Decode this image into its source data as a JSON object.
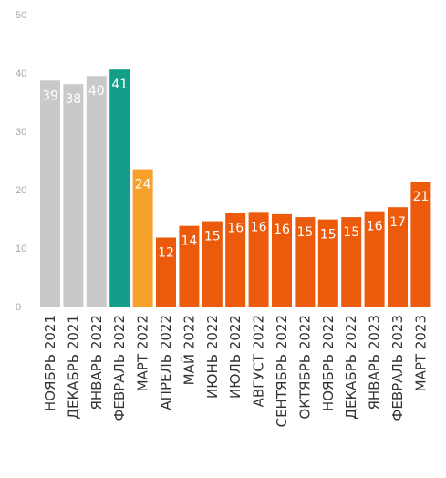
{
  "chart_data": {
    "type": "bar",
    "title": "",
    "xlabel": "",
    "ylabel": "",
    "ylim": [
      0,
      50
    ],
    "yticks": [
      0,
      10,
      20,
      30,
      40,
      50
    ],
    "grid": false,
    "categories": [
      "НОЯБРЬ 2021",
      "ДЕКАБРЬ 2021",
      "ЯНВАРЬ 2022",
      "ФЕВРАЛЬ 2022",
      "МАРТ 2022",
      "АПРЕЛЬ 2022",
      "МАЙ 2022",
      "ИЮНЬ 2022",
      "ИЮЛЬ 2022",
      "АВГУСТ 2022",
      "СЕНТЯБРЬ 2022",
      "ОКТЯБРЬ 2022",
      "НОЯБРЬ 2022",
      "ДЕКАБРЬ 2022",
      "ЯНВАРЬ 2023",
      "ФЕВРАЛЬ 2023",
      "МАРТ 2023"
    ],
    "values": [
      38.7,
      38.1,
      39.5,
      40.6,
      23.5,
      11.8,
      13.8,
      14.6,
      16.0,
      16.2,
      15.8,
      15.3,
      14.9,
      15.3,
      16.3,
      17.0,
      21.4
    ],
    "data_labels": [
      "39",
      "38",
      "40",
      "41",
      "24",
      "12",
      "14",
      "15",
      "16",
      "16",
      "16",
      "15",
      "15",
      "15",
      "16",
      "17",
      "21"
    ],
    "colors": {
      "gray": "#c9c9c9",
      "teal": "#139e8a",
      "yellow": "#f6a12b",
      "orange": "#ec5a0c"
    },
    "bar_colors": [
      "gray",
      "gray",
      "gray",
      "teal",
      "yellow",
      "orange",
      "orange",
      "orange",
      "orange",
      "orange",
      "orange",
      "orange",
      "orange",
      "orange",
      "orange",
      "orange",
      "orange"
    ]
  }
}
